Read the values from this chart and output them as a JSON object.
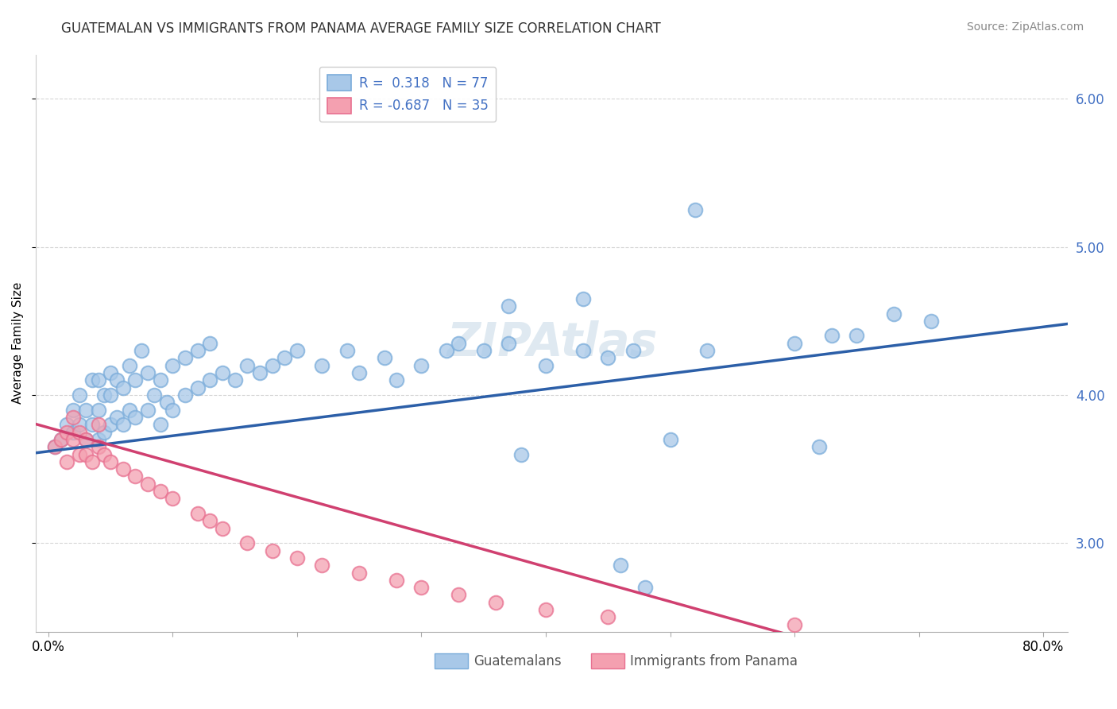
{
  "title": "GUATEMALAN VS IMMIGRANTS FROM PANAMA AVERAGE FAMILY SIZE CORRELATION CHART",
  "source": "Source: ZipAtlas.com",
  "ylabel": "Average Family Size",
  "watermark": "ZIPAtlas",
  "blue_R": "0.318",
  "blue_N": "77",
  "pink_R": "-0.687",
  "pink_N": "35",
  "xlim": [
    -0.01,
    0.82
  ],
  "ylim": [
    2.4,
    6.3
  ],
  "yticks": [
    3.0,
    4.0,
    5.0,
    6.0
  ],
  "blue_color": "#a8c8e8",
  "pink_color": "#f4a0b0",
  "blue_edge_color": "#7aacda",
  "pink_edge_color": "#e87090",
  "blue_line_color": "#2c5fa8",
  "pink_line_color": "#d04070",
  "background_color": "#ffffff",
  "grid_color": "#cccccc",
  "legend_label_blue": "Guatemalans",
  "legend_label_pink": "Immigrants from Panama",
  "blue_scatter_x": [
    0.005,
    0.01,
    0.015,
    0.02,
    0.02,
    0.025,
    0.025,
    0.03,
    0.03,
    0.035,
    0.035,
    0.04,
    0.04,
    0.04,
    0.045,
    0.045,
    0.05,
    0.05,
    0.05,
    0.055,
    0.055,
    0.06,
    0.06,
    0.065,
    0.065,
    0.07,
    0.07,
    0.075,
    0.08,
    0.08,
    0.085,
    0.09,
    0.09,
    0.095,
    0.1,
    0.1,
    0.11,
    0.11,
    0.12,
    0.12,
    0.13,
    0.13,
    0.14,
    0.15,
    0.16,
    0.17,
    0.18,
    0.19,
    0.2,
    0.22,
    0.24,
    0.25,
    0.27,
    0.28,
    0.3,
    0.32,
    0.33,
    0.35,
    0.37,
    0.38,
    0.4,
    0.43,
    0.45,
    0.47,
    0.5,
    0.53,
    0.37,
    0.43,
    0.6,
    0.63,
    0.65,
    0.68,
    0.71,
    0.62,
    0.46,
    0.48,
    0.52
  ],
  "blue_scatter_y": [
    3.65,
    3.7,
    3.8,
    3.75,
    3.9,
    3.8,
    4.0,
    3.7,
    3.9,
    3.8,
    4.1,
    3.7,
    3.9,
    4.1,
    3.75,
    4.0,
    3.8,
    4.0,
    4.15,
    3.85,
    4.1,
    3.8,
    4.05,
    3.9,
    4.2,
    3.85,
    4.1,
    4.3,
    3.9,
    4.15,
    4.0,
    3.8,
    4.1,
    3.95,
    3.9,
    4.2,
    4.0,
    4.25,
    4.05,
    4.3,
    4.1,
    4.35,
    4.15,
    4.1,
    4.2,
    4.15,
    4.2,
    4.25,
    4.3,
    4.2,
    4.3,
    4.15,
    4.25,
    4.1,
    4.2,
    4.3,
    4.35,
    4.3,
    4.35,
    3.6,
    4.2,
    4.3,
    4.25,
    4.3,
    3.7,
    4.3,
    4.6,
    4.65,
    4.35,
    4.4,
    4.4,
    4.55,
    4.5,
    3.65,
    2.85,
    2.7,
    5.25
  ],
  "pink_scatter_x": [
    0.005,
    0.01,
    0.015,
    0.015,
    0.02,
    0.02,
    0.025,
    0.025,
    0.03,
    0.03,
    0.035,
    0.04,
    0.04,
    0.045,
    0.05,
    0.06,
    0.07,
    0.08,
    0.09,
    0.1,
    0.12,
    0.13,
    0.14,
    0.16,
    0.18,
    0.2,
    0.22,
    0.25,
    0.28,
    0.3,
    0.33,
    0.36,
    0.4,
    0.45,
    0.6
  ],
  "pink_scatter_y": [
    3.65,
    3.7,
    3.75,
    3.55,
    3.7,
    3.85,
    3.6,
    3.75,
    3.6,
    3.7,
    3.55,
    3.65,
    3.8,
    3.6,
    3.55,
    3.5,
    3.45,
    3.4,
    3.35,
    3.3,
    3.2,
    3.15,
    3.1,
    3.0,
    2.95,
    2.9,
    2.85,
    2.8,
    2.75,
    2.7,
    2.65,
    2.6,
    2.55,
    2.5,
    2.45
  ],
  "blue_intercept": 3.62,
  "blue_slope": 1.05,
  "pink_intercept": 3.78,
  "pink_slope": -2.35,
  "title_fontsize": 12,
  "source_fontsize": 10,
  "ylabel_fontsize": 11,
  "tick_fontsize": 12,
  "legend_fontsize": 12,
  "watermark_fontsize": 42,
  "watermark_color": "#b8cfe0",
  "watermark_alpha": 0.45,
  "right_tick_color": "#4472c4"
}
